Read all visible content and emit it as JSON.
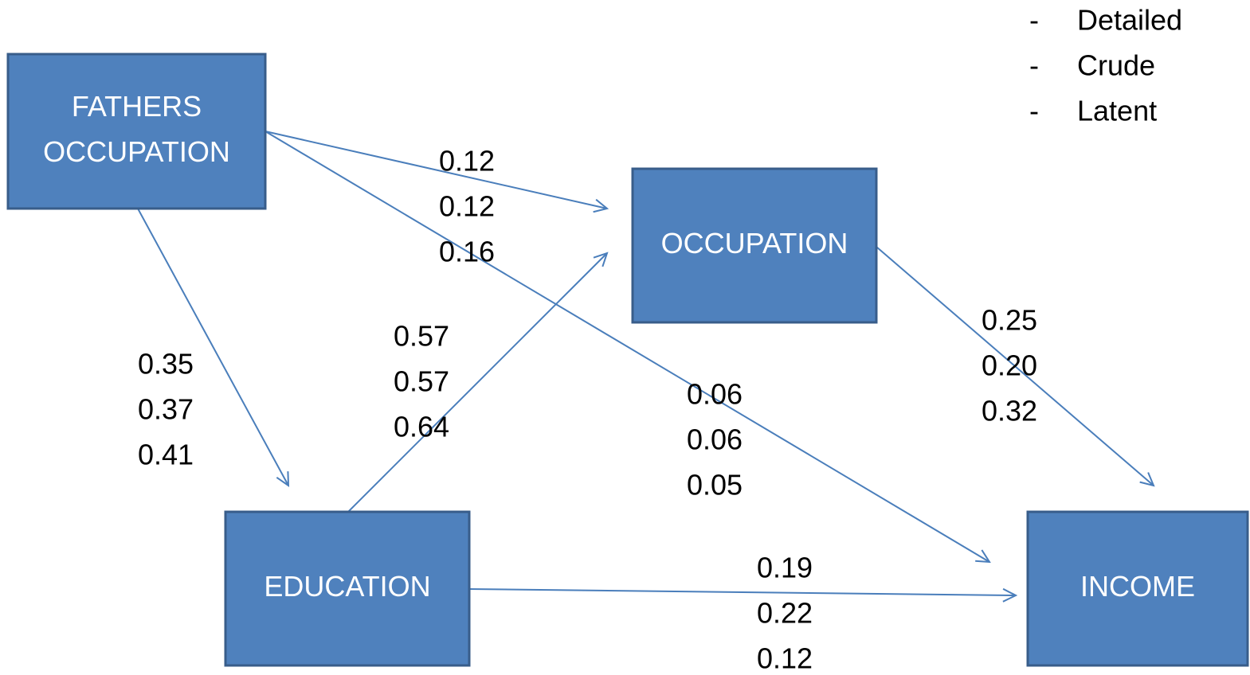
{
  "legend": {
    "items": [
      {
        "bullet": "-",
        "label": "Detailed"
      },
      {
        "bullet": "-",
        "label": "Crude"
      },
      {
        "bullet": "-",
        "label": "Latent"
      }
    ]
  },
  "nodes": [
    {
      "lines": [
        "FATHERS",
        "OCCUPATION"
      ]
    },
    {
      "lines": [
        "OCCUPATION"
      ]
    },
    {
      "lines": [
        "EDUCATION"
      ]
    },
    {
      "lines": [
        "INCOME"
      ]
    }
  ],
  "edges": [
    {
      "coefficients": [
        "0.12",
        "0.12",
        "0.16"
      ]
    },
    {
      "coefficients": [
        "0.06",
        "0.06",
        "0.05"
      ]
    },
    {
      "coefficients": [
        "0.35",
        "0.37",
        "0.41"
      ]
    },
    {
      "coefficients": [
        "0.57",
        "0.57",
        "0.64"
      ]
    },
    {
      "coefficients": [
        "0.25",
        "0.20",
        "0.32"
      ]
    },
    {
      "coefficients": [
        "0.19",
        "0.22",
        "0.12"
      ]
    }
  ]
}
